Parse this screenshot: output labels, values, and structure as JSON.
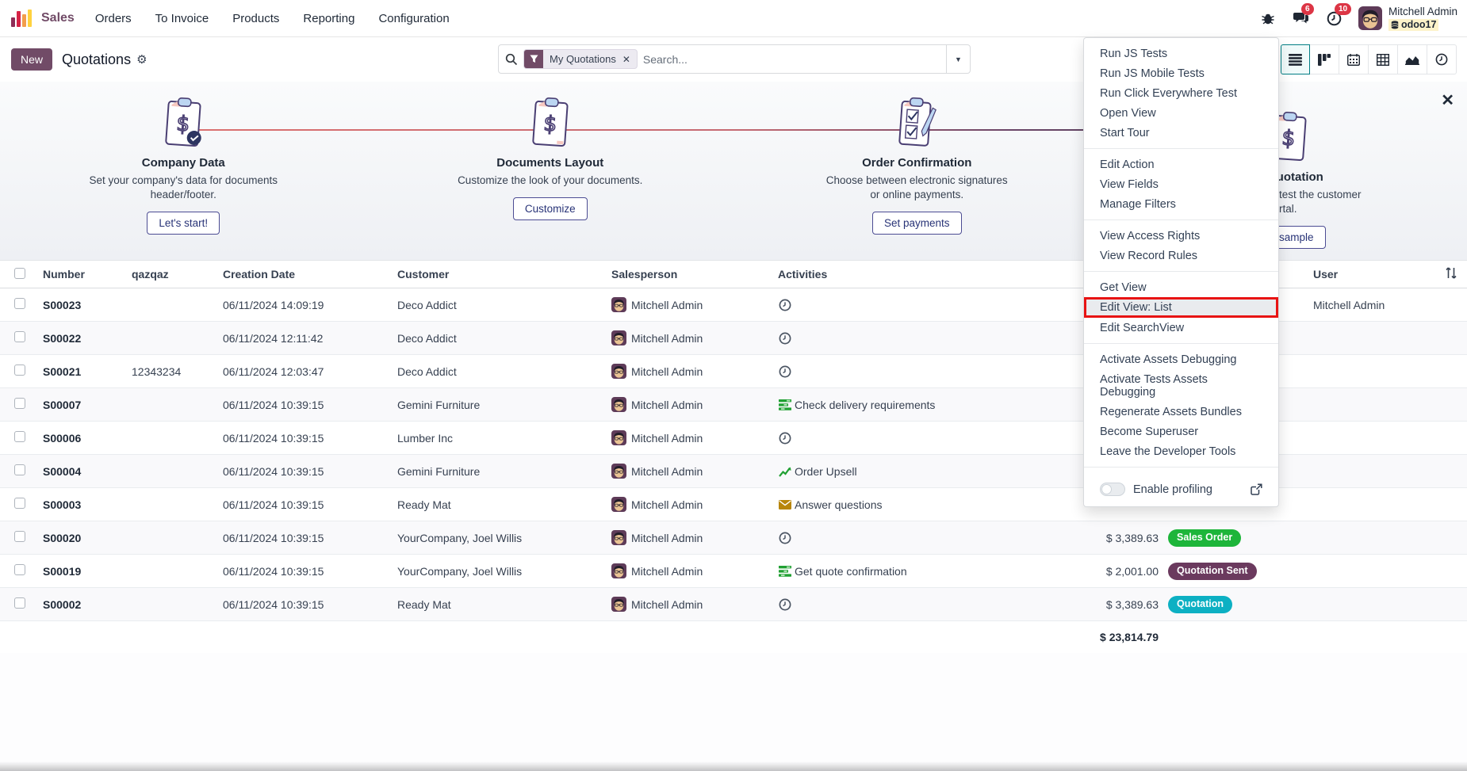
{
  "navbar": {
    "app_name": "Sales",
    "menus": [
      "Orders",
      "To Invoice",
      "Products",
      "Reporting",
      "Configuration"
    ],
    "systray": {
      "messages_badge": "6",
      "activities_badge": "10",
      "user_name": "Mitchell Admin",
      "database": "odoo17"
    }
  },
  "control_panel": {
    "new_button": "New",
    "title": "Quotations",
    "search": {
      "filter_chip": "My Quotations",
      "placeholder": "Search..."
    }
  },
  "onboarding": {
    "steps": [
      {
        "title": "Company Data",
        "desc_line1": "Set your company's data for documents",
        "desc_line2": "header/footer.",
        "button": "Let's start!"
      },
      {
        "title": "Documents Layout",
        "desc_line1": "Customize the look of your documents.",
        "desc_line2": "",
        "button": "Customize"
      },
      {
        "title": "Order Confirmation",
        "desc_line1": "Choose between electronic signatures",
        "desc_line2": "or online payments.",
        "button": "Set payments"
      },
      {
        "title": "Quotation",
        "desc_line1": "to test the customer",
        "desc_line2": "portal.",
        "button": "sample"
      }
    ]
  },
  "devtools_menu": {
    "groups": [
      [
        "Run JS Tests",
        "Run JS Mobile Tests",
        "Run Click Everywhere Test",
        "Open View",
        "Start Tour"
      ],
      [
        "Edit Action",
        "View Fields",
        "Manage Filters"
      ],
      [
        "View Access Rights",
        "View Record Rules"
      ],
      [
        "Get View",
        "Edit View: List",
        "Edit SearchView"
      ],
      [
        "Activate Assets Debugging",
        "Activate Tests Assets Debugging",
        "Regenerate Assets Bundles",
        "Become Superuser",
        "Leave the Developer Tools"
      ]
    ],
    "highlighted_item": "Edit View: List",
    "profiling_label": "Enable profiling"
  },
  "table": {
    "headers": {
      "number": "Number",
      "qazqaz": "qazqaz",
      "creation_date": "Creation Date",
      "customer": "Customer",
      "salesperson": "Salesperson",
      "activities": "Activities",
      "total": "",
      "status": "",
      "user": "User"
    },
    "rows": [
      {
        "number": "S00023",
        "qazqaz": "",
        "creation_date": "06/11/2024 14:09:19",
        "customer": "Deco Addict",
        "salesperson": "Mitchell Admin",
        "activity": {
          "icon": "clock",
          "label": ""
        },
        "total": "",
        "status": {
          "label": "",
          "color": ""
        },
        "user": "Mitchell Admin"
      },
      {
        "number": "S00022",
        "qazqaz": "",
        "creation_date": "06/11/2024 12:11:42",
        "customer": "Deco Addict",
        "salesperson": "Mitchell Admin",
        "activity": {
          "icon": "clock",
          "label": ""
        },
        "total": "",
        "status": {
          "label": "",
          "color": ""
        },
        "user": ""
      },
      {
        "number": "S00021",
        "qazqaz": "12343234",
        "creation_date": "06/11/2024 12:03:47",
        "customer": "Deco Addict",
        "salesperson": "Mitchell Admin",
        "activity": {
          "icon": "clock",
          "label": ""
        },
        "total": "",
        "status": {
          "label": "",
          "color": ""
        },
        "user": ""
      },
      {
        "number": "S00007",
        "qazqaz": "",
        "creation_date": "06/11/2024 10:39:15",
        "customer": "Gemini Furniture",
        "salesperson": "Mitchell Admin",
        "activity": {
          "icon": "tasks",
          "label": "Check delivery requirements"
        },
        "total": "",
        "status": {
          "label": "",
          "color": ""
        },
        "user": ""
      },
      {
        "number": "S00006",
        "qazqaz": "",
        "creation_date": "06/11/2024 10:39:15",
        "customer": "Lumber Inc",
        "salesperson": "Mitchell Admin",
        "activity": {
          "icon": "clock",
          "label": ""
        },
        "total": "",
        "status": {
          "label": "",
          "color": ""
        },
        "user": ""
      },
      {
        "number": "S00004",
        "qazqaz": "",
        "creation_date": "06/11/2024 10:39:15",
        "customer": "Gemini Furniture",
        "salesperson": "Mitchell Admin",
        "activity": {
          "icon": "chart",
          "label": "Order Upsell"
        },
        "total": "",
        "status": {
          "label": "",
          "color": ""
        },
        "user": ""
      },
      {
        "number": "S00003",
        "qazqaz": "",
        "creation_date": "06/11/2024 10:39:15",
        "customer": "Ready Mat",
        "salesperson": "Mitchell Admin",
        "activity": {
          "icon": "envelope",
          "label": "Answer questions"
        },
        "total": "",
        "status": {
          "label": "",
          "color": ""
        },
        "user": ""
      },
      {
        "number": "S00020",
        "qazqaz": "",
        "creation_date": "06/11/2024 10:39:15",
        "customer": "YourCompany, Joel Willis",
        "salesperson": "Mitchell Admin",
        "activity": {
          "icon": "clock",
          "label": ""
        },
        "total": "$ 3,389.63",
        "status": {
          "label": "Sales Order",
          "color": "#1db53a"
        },
        "user": ""
      },
      {
        "number": "S00019",
        "qazqaz": "",
        "creation_date": "06/11/2024 10:39:15",
        "customer": "YourCompany, Joel Willis",
        "salesperson": "Mitchell Admin",
        "activity": {
          "icon": "tasks",
          "label": "Get quote confirmation"
        },
        "total": "$ 2,001.00",
        "status": {
          "label": "Quotation Sent",
          "color": "#6b3a5e"
        },
        "user": ""
      },
      {
        "number": "S00002",
        "qazqaz": "",
        "creation_date": "06/11/2024 10:39:15",
        "customer": "Ready Mat",
        "salesperson": "Mitchell Admin",
        "activity": {
          "icon": "clock",
          "label": ""
        },
        "total": "$ 3,389.63",
        "status": {
          "label": "Quotation",
          "color": "#0db0c3"
        },
        "user": ""
      }
    ],
    "footer_total": "$ 23,814.79"
  },
  "colors": {
    "brand": "#714B67",
    "badge_red": "#dc3545",
    "highlight_border": "#e81313",
    "active_view_border": "#017e84"
  }
}
